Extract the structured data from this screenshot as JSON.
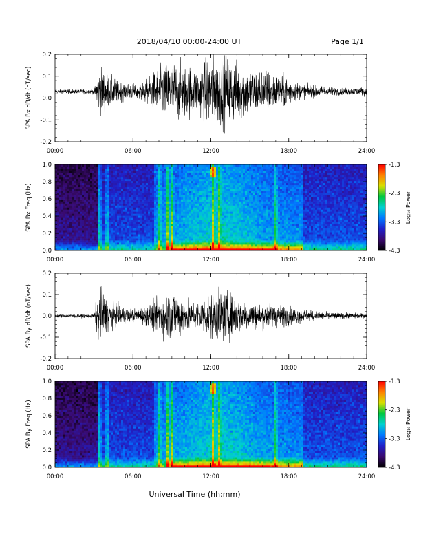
{
  "header": {
    "title": "2018/04/10   00:00-24:00 UT",
    "page": "Page 1/1"
  },
  "footer": {
    "xlabel": "Universal Time (hh:mm)"
  },
  "colorbar": {
    "label": "Log₁₀ Power",
    "ticks": [
      "-1.3",
      "-2.3",
      "-3.3",
      "-4.3"
    ],
    "range": [
      -4.3,
      -1.3
    ],
    "colors": [
      "#000000",
      "#3a0a6e",
      "#2020c8",
      "#0078ff",
      "#00d0d0",
      "#00c840",
      "#d8e000",
      "#ff8000",
      "#ff0000"
    ]
  },
  "chart_data": [
    {
      "type": "line",
      "panel": "bx",
      "ylabel": "SPA Bx dB/dt (nT/sec)",
      "ylim": [
        -0.2,
        0.2
      ],
      "yticks": [
        "0.2",
        "0.1",
        "0.0",
        "-0.1",
        "-0.2"
      ],
      "xticks": [
        "00:00",
        "06:00",
        "12:00",
        "18:00",
        "24:00"
      ],
      "envelope": {
        "t_hours": [
          0,
          1,
          2,
          3,
          3.3,
          3.6,
          4,
          5,
          6,
          7,
          8,
          9,
          9.5,
          10,
          11,
          12,
          13,
          14,
          15,
          16,
          17,
          18,
          19,
          20,
          21,
          22,
          23,
          24
        ],
        "amplitude": [
          0.015,
          0.02,
          0.02,
          0.02,
          0.15,
          0.2,
          0.15,
          0.08,
          0.07,
          0.1,
          0.2,
          0.25,
          0.25,
          0.22,
          0.2,
          0.3,
          0.3,
          0.25,
          0.2,
          0.2,
          0.15,
          0.12,
          0.06,
          0.05,
          0.04,
          0.03,
          0.03,
          0.04
        ],
        "offset": 0.03
      }
    },
    {
      "type": "heatmap",
      "panel": "bx-spectrogram",
      "ylabel": "SPA Bx Freq (Hz)",
      "ylim": [
        0.0,
        1.0
      ],
      "yticks": [
        "1.0",
        "0.8",
        "0.6",
        "0.4",
        "0.2",
        "0.0"
      ],
      "xticks": [
        "00:00",
        "06:00",
        "12:00",
        "18:00",
        "24:00"
      ],
      "zlim": [
        -4.3,
        -1.3
      ],
      "features": {
        "bright_bands_hours": [
          3.4,
          3.9,
          8.0,
          8.6,
          8.9,
          12.1,
          12.6,
          16.9
        ],
        "low_freq_enhancement_hours": [
          9.0,
          21.5
        ]
      }
    },
    {
      "type": "line",
      "panel": "by",
      "ylabel": "SPA By dB/dt (nT/sec)",
      "ylim": [
        -0.2,
        0.2
      ],
      "yticks": [
        "0.2",
        "0.1",
        "0.0",
        "-0.1",
        "-0.2"
      ],
      "xticks": [
        "00:00",
        "06:00",
        "12:00",
        "18:00",
        "24:00"
      ],
      "envelope": {
        "t_hours": [
          0,
          1,
          2,
          3,
          3.3,
          3.6,
          4,
          5,
          6,
          7,
          8,
          9,
          9.5,
          10,
          11,
          12,
          13,
          14,
          15,
          16,
          17,
          18,
          19,
          20,
          21,
          22,
          23,
          24
        ],
        "amplitude": [
          0.015,
          0.015,
          0.015,
          0.015,
          0.2,
          0.25,
          0.15,
          0.08,
          0.06,
          0.08,
          0.15,
          0.22,
          0.2,
          0.15,
          0.12,
          0.2,
          0.22,
          0.15,
          0.12,
          0.1,
          0.1,
          0.08,
          0.06,
          0.04,
          0.03,
          0.025,
          0.025,
          0.02
        ],
        "offset": 0.0
      }
    },
    {
      "type": "heatmap",
      "panel": "by-spectrogram",
      "ylabel": "SPA By Freq (Hz)",
      "ylim": [
        0.0,
        1.0
      ],
      "yticks": [
        "1.0",
        "0.8",
        "0.6",
        "0.4",
        "0.2",
        "0.0"
      ],
      "xticks": [
        "00:00",
        "06:00",
        "12:00",
        "18:00",
        "24:00"
      ],
      "zlim": [
        -4.3,
        -1.3
      ],
      "features": {
        "bright_bands_hours": [
          3.4,
          3.9,
          8.0,
          8.6,
          8.9,
          12.1,
          12.6,
          16.9
        ],
        "low_freq_enhancement_hours": [
          9.0,
          21.5
        ]
      }
    }
  ]
}
